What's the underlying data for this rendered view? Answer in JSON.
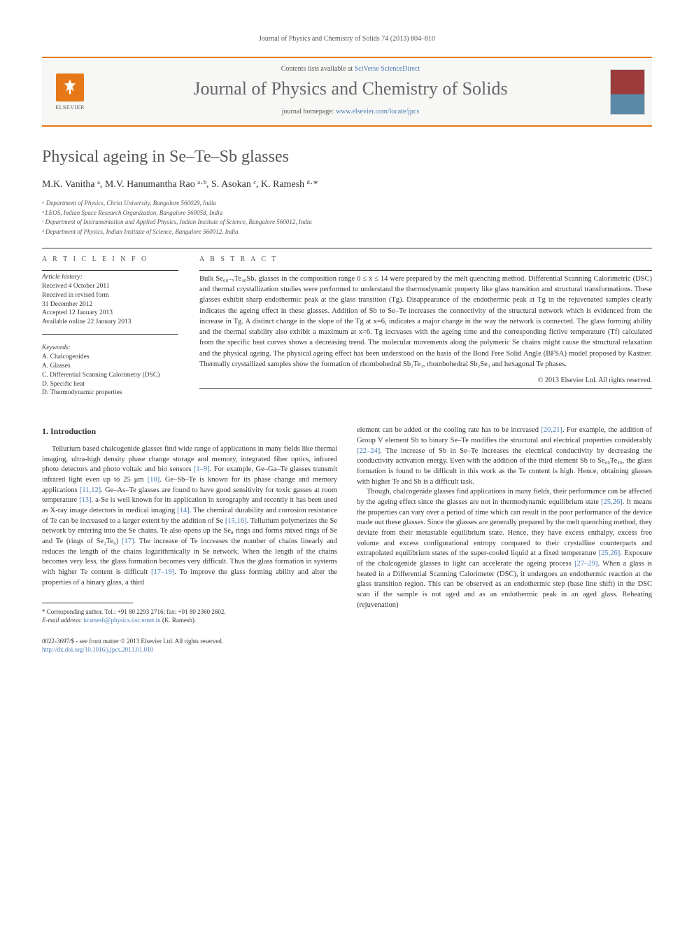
{
  "running_header": "Journal of Physics and Chemistry of Solids 74 (2013) 804–810",
  "header": {
    "contents_prefix": "Contents lists available at ",
    "contents_link": "SciVerse ScienceDirect",
    "journal_title": "Journal of Physics and Chemistry of Solids",
    "homepage_prefix": "journal homepage: ",
    "homepage_link": "www.elsevier.com/locate/jpcs",
    "elsevier_label": "ELSEVIER"
  },
  "article": {
    "title": "Physical ageing in Se–Te–Sb glasses",
    "authors_html": "M.K. Vanitha ᵃ, M.V. Hanumantha Rao ᵃ·ᵇ, S. Asokan ᶜ, K. Ramesh ᵈ·*",
    "affiliations": [
      "ᵃ Department of Physics, Christ University, Bangalore 560029, India",
      "ᵇ LEOS, Indian Space Research Organization, Bangalore 560058, India",
      "ᶜ Department of Instrumentation and Applied Physics, Indian Institute of Science, Bangalore 560012, India",
      "ᵈ Department of Physics, Indian Institute of Science, Bangalore 560012, India"
    ]
  },
  "info": {
    "label": "A R T I C L E  I N F O",
    "history_label": "Article history:",
    "history": [
      "Received 4 October 2011",
      "Received in revised form",
      "31 December 2012",
      "Accepted 12 January 2013",
      "Available online 22 January 2013"
    ],
    "keywords_label": "Keywords:",
    "keywords": [
      "A. Chalcogenides",
      "A. Glasses",
      "C. Differential Scanning Calorimetry (DSC)",
      "D. Specific heat",
      "D. Thermodynamic properties"
    ]
  },
  "abstract": {
    "label": "A B S T R A C T",
    "text": "Bulk Se₆₀₋ₓTe₄₀Sbₓ glasses in the composition range 0 ≤ x ≤ 14 were prepared by the melt quenching method. Differential Scanning Calorimetric (DSC) and thermal crystallization studies were performed to understand the thermodynamic property like glass transition and structural transformations. These glasses exhibit sharp endothermic peak at the glass transition (Tg). Disappearance of the endothermic peak at Tg in the rejuvenated samples clearly indicates the ageing effect in these glasses. Addition of Sb to Se–Te increases the connectivity of the structural network which is evidenced from the increase in Tg. A distinct change in the slope of the Tg at x=6, indicates a major change in the way the network is connected. The glass forming ability and the thermal stability also exhibit a maximum at x=6. Tg increases with the ageing time and the corresponding fictive temperature (Tf) calculated from the specific heat curves shows a decreasing trend. The molecular movements along the polymeric Se chains might cause the structural relaxation and the physical ageing. The physical ageing effect has been understood on the basis of the Bond Free Solid Angle (BFSA) model proposed by Kastner. Thermally crystallized samples show the formation of rhombohedral Sb₂Te₃, rhombohedral Sb₂Se₃ and hexagonal Te phases.",
    "copyright": "© 2013 Elsevier Ltd. All rights reserved."
  },
  "body": {
    "section_title": "1. Introduction",
    "col1_p1": "Tellurium based chalcogenide glasses find wide range of applications in many fields like thermal imaging, ultra-high density phase change storage and memory, integrated fiber optics, infrared photo detectors and photo voltaic and bio sensors [1–9]. For example, Ge–Ga–Te glasses transmit infrared light even up to 25 μm [10]. Ge–Sb–Te is known for its phase change and memory applications [11,12]. Ge–As–Te glasses are found to have good sensitivity for toxic gasses at room temperature [13]. a-Se is well known for its application in xerography and recently it has been used as X-ray image detectors in medical imaging [14]. The chemical durability and corrosion resistance of Te can be increased to a larger extent by the addition of Se [15,16]. Tellurium polymerizes the Se network by entering into the Se chains. Te also opens up the Se₈ rings and forms mixed rings of Se and Te (rings of Se₂Te₆) [17]. The increase of Te increases the number of chains linearly and reduces the length of the chains logarithmically in Se network. When the length of the chains becomes very less, the glass formation becomes very difficult. Thus the glass formation in systems with higher Te content is difficult [17–19]. To improve the glass forming ability and alter the properties of a binary glass, a third",
    "col2_p1": "element can be added or the cooling rate has to be increased [20,21]. For example, the addition of Group V element Sb to binary Se–Te modifies the structural and electrical properties considerably [22–24]. The increase of Sb in Se–Te increases the electrical conductivity by decreasing the conductivity activation energy. Even with the addition of the third element Sb to Se₆₀Te₄₀, the glass formation is found to be difficult in this work as the Te content is high. Hence, obtaining glasses with higher Te and Sb is a difficult task.",
    "col2_p2": "Though, chalcogenide glasses find applications in many fields, their performance can be affected by the ageing effect since the glasses are not in thermodynamic equilibrium state [25,26]. It means the properties can vary over a period of time which can result in the poor performance of the device made out these glasses. Since the glasses are generally prepared by the melt quenching method, they deviate from their metastable equilibrium state. Hence, they have excess enthalpy, excess free volume and excess configurational entropy compared to their crystalline counterparts and extrapolated equilibrium states of the super-cooled liquid at a fixed temperature [25,26]. Exposure of the chalcogenide glasses to light can accelerate the ageing process [27–29]. When a glass is heated in a Differential Scanning Calorimeter (DSC), it undergoes an endothermic reaction at the glass transition region. This can be observed as an endothermic step (base line shift) in the DSC scan if the sample is not aged and as an endothermic peak in an aged glass. Reheating (rejuvenation)"
  },
  "footnote": {
    "corr": "* Corresponding author. Tel.: +91 80 2293 2716; fax: +91 80 2360 2602.",
    "email_label": "E-mail address: ",
    "email": "kramesh@physics.iisc.ernet.in",
    "email_tail": " (K. Ramesh)."
  },
  "footer": {
    "line1": "0022-3697/$ - see front matter © 2013 Elsevier Ltd. All rights reserved.",
    "doi": "http://dx.doi.org/10.1016/j.jpcs.2013.01.010"
  }
}
